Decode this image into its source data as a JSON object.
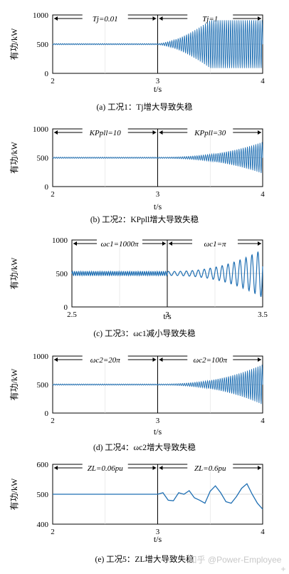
{
  "figure": {
    "watermark": "知乎 @Power-Employee",
    "corner_mark": "+"
  },
  "chart_data": [
    {
      "type": "line",
      "caption": "(a) 工况1：Tj增大导致失稳",
      "ylabel": "有功/kW",
      "xlabel": "t/s",
      "xticks": [
        "2",
        "3",
        "4"
      ],
      "yticks": [
        "0",
        "500",
        "1000"
      ],
      "xlim": [
        2,
        4
      ],
      "ylim": [
        0,
        1000
      ],
      "grid": true,
      "annotations": [
        {
          "text": "Tj=0.01",
          "x_range": [
            2,
            3
          ]
        },
        {
          "text": "Tj=1",
          "x_range": [
            3,
            4
          ]
        }
      ],
      "divider_x": 3,
      "series": [
        {
          "mean": 500,
          "start_amplitude": 10,
          "end_amplitude": 420,
          "behavior": "growing oscillation after t=3, saturating near 3.5",
          "saturation_x": 3.5
        }
      ]
    },
    {
      "type": "line",
      "caption": "(b) 工况2：KPpll增大导致失稳",
      "ylabel": "有功/kW",
      "xlabel": "t/s",
      "xticks": [
        "2",
        "3",
        "4"
      ],
      "yticks": [
        "0",
        "500",
        "1000"
      ],
      "xlim": [
        2,
        4
      ],
      "ylim": [
        0,
        1000
      ],
      "grid": true,
      "annotations": [
        {
          "text": "KPpll=10",
          "x_range": [
            2,
            3
          ]
        },
        {
          "text": "KPpll=30",
          "x_range": [
            3,
            4
          ]
        }
      ],
      "divider_x": 3,
      "series": [
        {
          "mean": 500,
          "start_amplitude": 10,
          "end_amplitude": 280,
          "behavior": "growing oscillation after t=3"
        }
      ]
    },
    {
      "type": "line",
      "caption": "(c) 工况3：ωc1减小导致失稳",
      "ylabel": "有功/kW",
      "xlabel": "t/s",
      "xticks": [
        "2.5",
        "3",
        "3.5"
      ],
      "yticks": [
        "0",
        "500",
        "1000"
      ],
      "xlim": [
        2.5,
        3.5
      ],
      "ylim": [
        0,
        1000
      ],
      "grid": true,
      "annotations": [
        {
          "text": "ωc1=1000π",
          "x_range": [
            2.5,
            3
          ]
        },
        {
          "text": "ωc1=π",
          "x_range": [
            3,
            3.5
          ]
        }
      ],
      "divider_x": 3,
      "series": [
        {
          "mean": 500,
          "start_amplitude": 30,
          "end_amplitude": 360,
          "behavior": "slow growing oscillation about 16 cycles after t=3"
        }
      ]
    },
    {
      "type": "line",
      "caption": "(d) 工况4：ωc2增大导致失稳",
      "ylabel": "有功/kW",
      "xlabel": "t/s",
      "xticks": [
        "2",
        "3",
        "4"
      ],
      "yticks": [
        "0",
        "500",
        "1000"
      ],
      "xlim": [
        2,
        4
      ],
      "ylim": [
        0,
        1000
      ],
      "grid": true,
      "annotations": [
        {
          "text": "ωc2=20π",
          "x_range": [
            2,
            3
          ]
        },
        {
          "text": "ωc2=100π",
          "x_range": [
            3,
            4
          ]
        }
      ],
      "divider_x": 3,
      "series": [
        {
          "mean": 500,
          "start_amplitude": 10,
          "end_amplitude": 360,
          "behavior": "growing oscillation after t=3"
        }
      ]
    },
    {
      "type": "line",
      "caption": "(e) 工况5：ZL增大导致失稳",
      "ylabel": "有功/kW",
      "xlabel": "t/s",
      "xticks": [
        "2",
        "3",
        "4"
      ],
      "yticks": [
        "400",
        "500",
        "600"
      ],
      "xlim": [
        2,
        4
      ],
      "ylim": [
        400,
        600
      ],
      "grid": true,
      "annotations": [
        {
          "text": "ZL=0.06pu",
          "x_range": [
            2,
            3
          ]
        },
        {
          "text": "ZL=0.6pu",
          "x_range": [
            3,
            4
          ]
        }
      ],
      "divider_x": 3,
      "series": [
        {
          "points": [
            [
              2.0,
              500
            ],
            [
              3.0,
              500
            ],
            [
              3.05,
              505
            ],
            [
              3.1,
              480
            ],
            [
              3.15,
              478
            ],
            [
              3.2,
              505
            ],
            [
              3.25,
              500
            ],
            [
              3.3,
              512
            ],
            [
              3.35,
              488
            ],
            [
              3.4,
              480
            ],
            [
              3.45,
              470
            ],
            [
              3.5,
              510
            ],
            [
              3.55,
              528
            ],
            [
              3.6,
              505
            ],
            [
              3.65,
              475
            ],
            [
              3.7,
              470
            ],
            [
              3.75,
              492
            ],
            [
              3.8,
              520
            ],
            [
              3.85,
              535
            ],
            [
              3.9,
              500
            ],
            [
              3.95,
              470
            ],
            [
              4.0,
              450
            ]
          ]
        }
      ]
    }
  ]
}
